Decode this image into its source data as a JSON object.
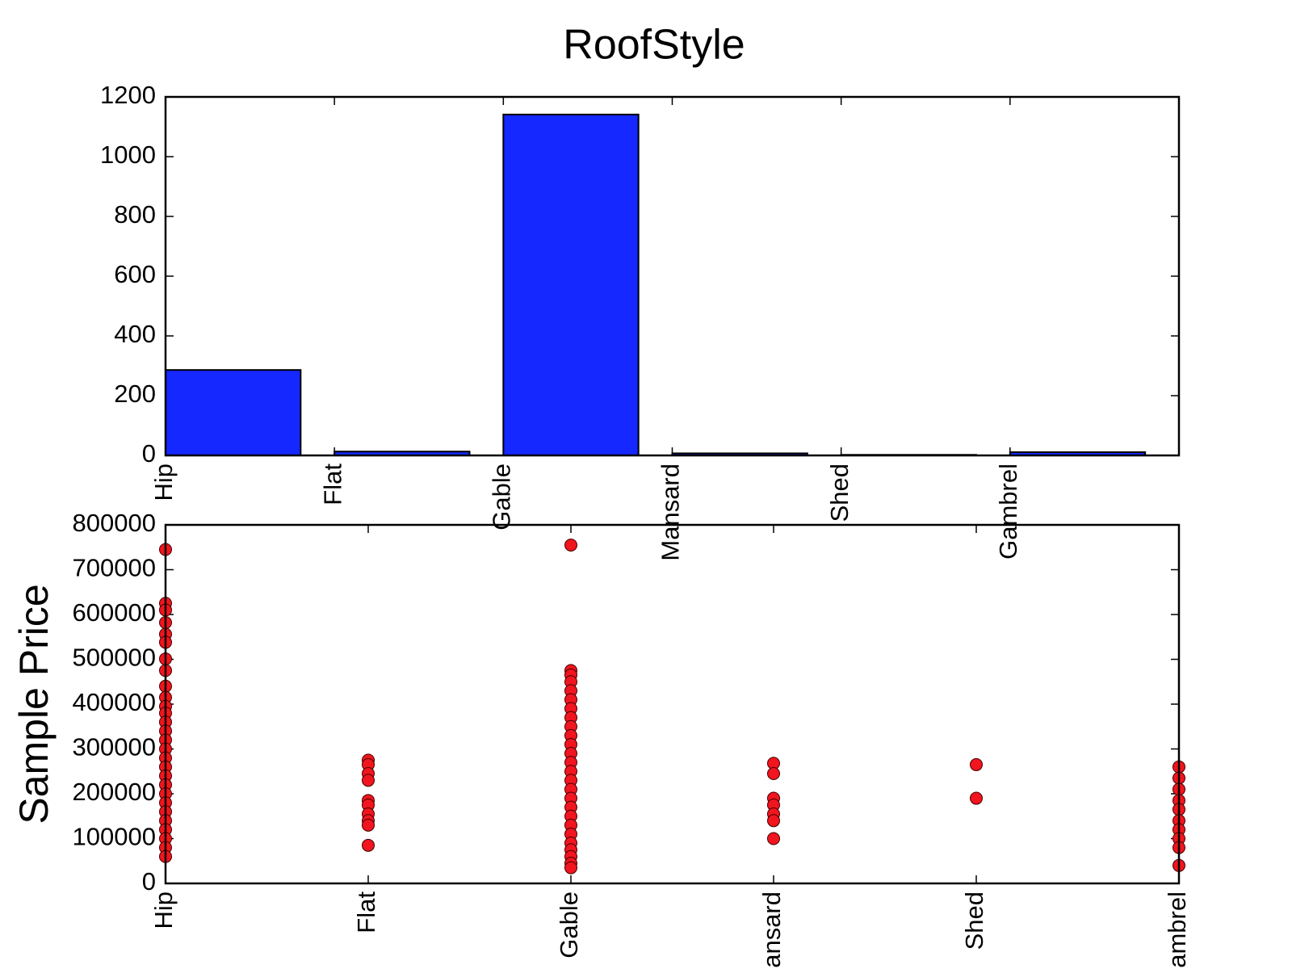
{
  "title": "RoofStyle",
  "chart_data": [
    {
      "type": "bar",
      "categories": [
        "Hip",
        "Flat",
        "Gable",
        "Mansard",
        "Shed",
        "Gambrel"
      ],
      "values": [
        286,
        13,
        1141,
        7,
        2,
        11
      ],
      "color": "#1428ff",
      "ylim": [
        0,
        1200
      ],
      "yticks": [
        0,
        200,
        400,
        600,
        800,
        1000,
        1200
      ]
    },
    {
      "type": "scatter",
      "ylabel": "Sample Price",
      "categories": [
        "Hip",
        "Flat",
        "Gable",
        "Mansard",
        "Shed",
        "Gambrel"
      ],
      "values": [
        [
          745000,
          625000,
          610000,
          582000,
          556000,
          538000,
          501000,
          475000,
          440000,
          415000,
          395000,
          380000,
          360000,
          340000,
          320000,
          300000,
          280000,
          260000,
          240000,
          220000,
          200000,
          180000,
          160000,
          140000,
          120000,
          100000,
          80000,
          60000
        ],
        [
          275000,
          265000,
          245000,
          230000,
          185000,
          175000,
          155000,
          140000,
          130000,
          85000
        ],
        [
          755000,
          475000,
          465000,
          450000,
          430000,
          410000,
          390000,
          370000,
          350000,
          330000,
          310000,
          290000,
          270000,
          250000,
          230000,
          210000,
          190000,
          170000,
          150000,
          130000,
          110000,
          90000,
          75000,
          60000,
          45000,
          35000
        ],
        [
          268000,
          245000,
          190000,
          175000,
          155000,
          140000,
          100000
        ],
        [
          265000,
          190000
        ],
        [
          260000,
          235000,
          210000,
          185000,
          165000,
          140000,
          120000,
          100000,
          80000,
          40000
        ]
      ],
      "color": "#f0151e",
      "ylim": [
        0,
        800000
      ],
      "yticks": [
        0,
        100000,
        200000,
        300000,
        400000,
        500000,
        600000,
        700000,
        800000
      ]
    }
  ]
}
